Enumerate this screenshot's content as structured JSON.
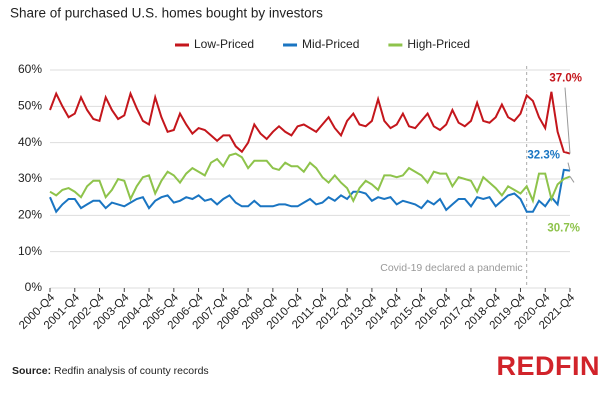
{
  "chart_data": {
    "type": "line",
    "title": "Share of purchased U.S. homes bought by investors",
    "categories": [
      "2000-Q4",
      null,
      null,
      null,
      "2001-Q4",
      null,
      null,
      null,
      "2002-Q4",
      null,
      null,
      null,
      "2003-Q4",
      null,
      null,
      null,
      "2004-Q4",
      null,
      null,
      null,
      "2005-Q4",
      null,
      null,
      null,
      "2006-Q4",
      null,
      null,
      null,
      "2007-Q4",
      null,
      null,
      null,
      "2008-Q4",
      null,
      null,
      null,
      "2009-Q4",
      null,
      null,
      null,
      "2010-Q4",
      null,
      null,
      null,
      "2011-Q4",
      null,
      null,
      null,
      "2012-Q4",
      null,
      null,
      null,
      "2013-Q4",
      null,
      null,
      null,
      "2014-Q4",
      null,
      null,
      null,
      "2015-Q4",
      null,
      null,
      null,
      "2016-Q4",
      null,
      null,
      null,
      "2017-Q4",
      null,
      null,
      null,
      "2018-Q4",
      null,
      null,
      null,
      "2019-Q4",
      null,
      null,
      null,
      "2020-Q4",
      null,
      null,
      null,
      "2021-Q4"
    ],
    "series": [
      {
        "name": "Low-Priced",
        "color": "#c4161c",
        "values": [
          49,
          53.5,
          50,
          47,
          48,
          52.5,
          49,
          46.5,
          46,
          52.5,
          49,
          46.5,
          47.5,
          53.5,
          49.5,
          46,
          45,
          52.5,
          47,
          43,
          43.5,
          48,
          45,
          42.5,
          44,
          43.5,
          42,
          40.5,
          42,
          42,
          39,
          37.5,
          40,
          45,
          42.5,
          41,
          43,
          44.5,
          43,
          42,
          44.5,
          45,
          44,
          43,
          45,
          47,
          44,
          42,
          46,
          48,
          45,
          44.5,
          46,
          52,
          46,
          44,
          45,
          48,
          44.5,
          44,
          46,
          48,
          44.5,
          43.5,
          45,
          49,
          45.5,
          44.5,
          46,
          51,
          46,
          45.5,
          47,
          50.5,
          47,
          46,
          48,
          53,
          51.5,
          47,
          44,
          54,
          43,
          37.5,
          37.0
        ],
        "value_labels": [
          null,
          null,
          null,
          null,
          null,
          null,
          null,
          null,
          null,
          null,
          null,
          null,
          null,
          null,
          null,
          null,
          null,
          null,
          null,
          null,
          null,
          null,
          null,
          null,
          null,
          null,
          null,
          null,
          null,
          null,
          null,
          null,
          null,
          null,
          null,
          null,
          null,
          null,
          null,
          null,
          null,
          null,
          null,
          null,
          null,
          null,
          null,
          null,
          null,
          null,
          null,
          null,
          null,
          null,
          null,
          null,
          null,
          null,
          null,
          null,
          null,
          null,
          null,
          null,
          null,
          null,
          null,
          null,
          null,
          null,
          null,
          null,
          null,
          null,
          null,
          null,
          null,
          null,
          null,
          null,
          null,
          null,
          null,
          null,
          "37.0%"
        ]
      },
      {
        "name": "Mid-Priced",
        "color": "#1a75c2",
        "values": [
          25,
          21,
          23,
          24.5,
          24.5,
          22,
          23,
          24,
          24,
          22,
          23.5,
          23,
          22.5,
          23.5,
          24.5,
          25,
          22,
          24,
          25,
          25.5,
          23.5,
          24,
          25,
          24.5,
          25.5,
          24,
          24.5,
          23,
          24.5,
          25.5,
          23.5,
          22.5,
          22.5,
          24,
          22.5,
          22.5,
          22.5,
          23,
          23,
          22.5,
          22.5,
          23.5,
          24.5,
          23,
          23.5,
          25,
          24,
          25.5,
          24.5,
          26.5,
          26.5,
          26,
          24,
          25,
          24.5,
          25,
          23,
          24,
          23.5,
          23,
          22,
          24,
          23,
          24.5,
          21.5,
          23,
          24.5,
          24.5,
          22.5,
          25,
          24.5,
          25,
          22.5,
          24,
          25.5,
          26,
          24.5,
          21,
          21,
          24,
          22.5,
          25,
          23,
          32.5,
          32.3
        ],
        "value_labels": [
          null,
          null,
          null,
          null,
          null,
          null,
          null,
          null,
          null,
          null,
          null,
          null,
          null,
          null,
          null,
          null,
          null,
          null,
          null,
          null,
          null,
          null,
          null,
          null,
          null,
          null,
          null,
          null,
          null,
          null,
          null,
          null,
          null,
          null,
          null,
          null,
          null,
          null,
          null,
          null,
          null,
          null,
          null,
          null,
          null,
          null,
          null,
          null,
          null,
          null,
          null,
          null,
          null,
          null,
          null,
          null,
          null,
          null,
          null,
          null,
          null,
          null,
          null,
          null,
          null,
          null,
          null,
          null,
          null,
          null,
          null,
          null,
          null,
          null,
          null,
          null,
          null,
          null,
          null,
          null,
          null,
          null,
          null,
          null,
          "32.3%"
        ]
      },
      {
        "name": "High-Priced",
        "color": "#8ec34b",
        "values": [
          26.5,
          25.5,
          27,
          27.5,
          26.5,
          25,
          28,
          29.5,
          29.5,
          25,
          27,
          30,
          29.5,
          24.5,
          28,
          30.5,
          31,
          26,
          29.5,
          32,
          31,
          29,
          31.5,
          33,
          32,
          31,
          34.5,
          35.5,
          33.5,
          36.5,
          37,
          36,
          33,
          35,
          35,
          35,
          33,
          32.5,
          34.5,
          33.5,
          33.5,
          32,
          34.5,
          33,
          30.5,
          29,
          31,
          29,
          27.5,
          24,
          27.5,
          29.5,
          28.5,
          27,
          31,
          31,
          30.5,
          31,
          33,
          32,
          31,
          29,
          32,
          31.5,
          31.5,
          28,
          30.5,
          30,
          29.5,
          26.5,
          30.5,
          29,
          27.5,
          25.5,
          28,
          27,
          26,
          28,
          24,
          31.5,
          31.5,
          24.5,
          28.5,
          30,
          30.7
        ],
        "value_labels": [
          null,
          null,
          null,
          null,
          null,
          null,
          null,
          null,
          null,
          null,
          null,
          null,
          null,
          null,
          null,
          null,
          null,
          null,
          null,
          null,
          null,
          null,
          null,
          null,
          null,
          null,
          null,
          null,
          null,
          null,
          null,
          null,
          null,
          null,
          null,
          null,
          null,
          null,
          null,
          null,
          null,
          null,
          null,
          null,
          null,
          null,
          null,
          null,
          null,
          null,
          null,
          null,
          null,
          null,
          null,
          null,
          null,
          null,
          null,
          null,
          null,
          null,
          null,
          null,
          null,
          null,
          null,
          null,
          null,
          null,
          null,
          null,
          null,
          null,
          null,
          null,
          null,
          null,
          null,
          null,
          null,
          null,
          null,
          null,
          "30.7%"
        ]
      }
    ],
    "ylim": [
      0,
      60
    ],
    "yticks": [
      {
        "value": 0,
        "label": "0%"
      },
      {
        "value": 10,
        "label": "10%"
      },
      {
        "value": 20,
        "label": "20%"
      },
      {
        "value": 30,
        "label": "30%"
      },
      {
        "value": 40,
        "label": "40%"
      },
      {
        "value": 50,
        "label": "50%"
      },
      {
        "value": 60,
        "label": "60%"
      }
    ],
    "grid": true,
    "legend": "top",
    "annotation": "Covid-19 declared a pandemic",
    "source_label": "Source:",
    "source": "Redfin analysis of county records",
    "logo": "REDFIN"
  }
}
